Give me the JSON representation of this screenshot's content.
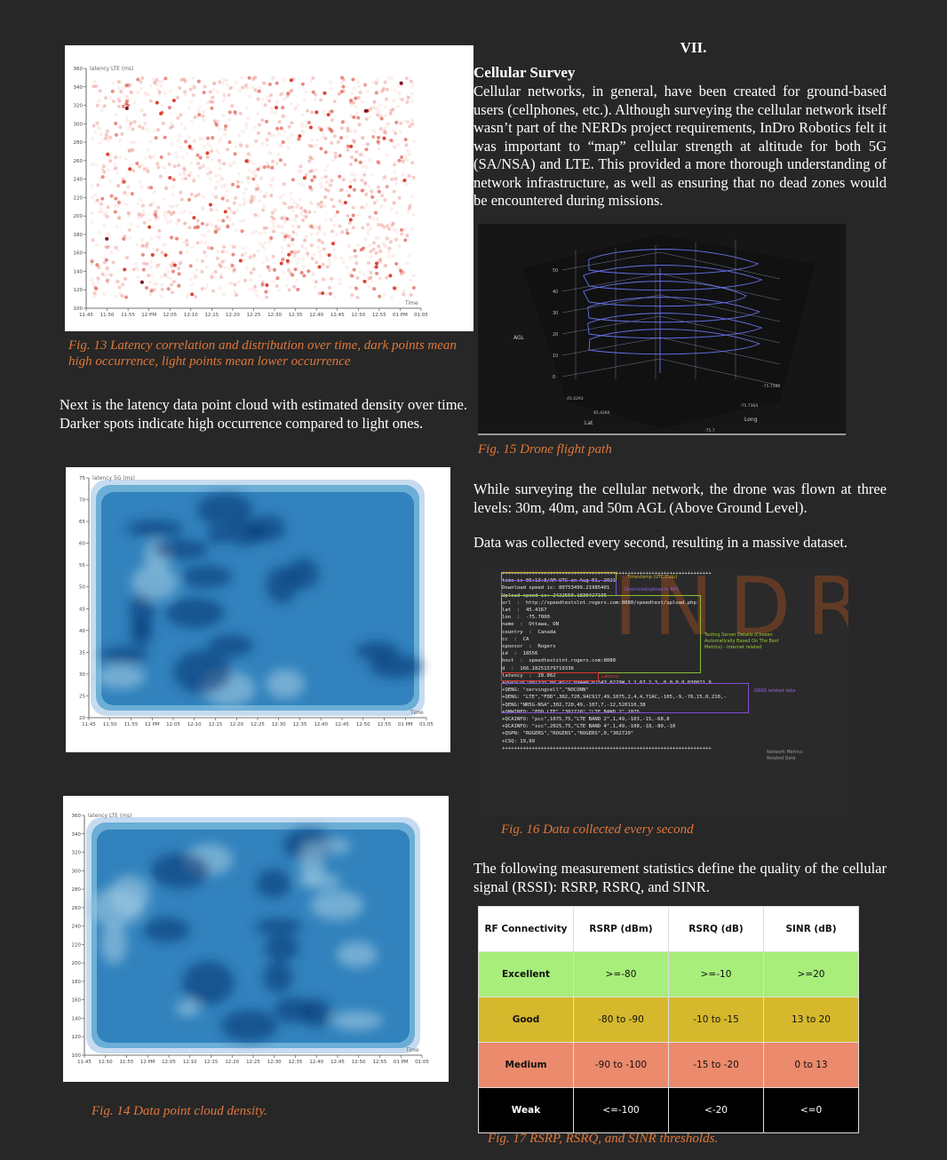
{
  "section_number": "VII.",
  "section_title": "Cellular Survey",
  "intro_paragraph": "Cellular networks, in general, have been created for ground-based users (cellphones, etc.). Although surveying the cellular network itself wasn’t part of the NERDs project requirements, InDro Robotics felt it was important to “map” cellular strength at altitude for both 5G (SA/NSA) and LTE. This provided a more thorough understanding of network infrastructure, as well as ensuring that no dead zones would be encountered during missions.",
  "time_ticks": [
    "11:45",
    "11:50",
    "11:55",
    "12 PM",
    "12:05",
    "12:10",
    "12:15",
    "12:20",
    "12:25",
    "12:30",
    "12:35",
    "12:40",
    "12:45",
    "12:50",
    "12:55",
    "01 PM",
    "01:05"
  ],
  "fig13": {
    "ylabel": "latency LTE (ms)",
    "xlabel": "Time",
    "yticks": [
      "100",
      "120",
      "140",
      "160",
      "180",
      "200",
      "220",
      "240",
      "260",
      "280",
      "300",
      "320",
      "340",
      "360"
    ],
    "ylim": [
      100,
      360
    ],
    "point_color": "#d7301f",
    "caption": "Fig. 13 Latency correlation and distribution over time, dark points mean high occurrence, light points mean lower occurrence"
  },
  "latency_paragraph": "Next is the latency data point cloud with estimated density over time. Darker spots indicate high occurrence compared to light ones.",
  "fig_5g": {
    "ylabel": "latency 5G (ms)",
    "xlabel": "Time",
    "yticks": [
      "20",
      "25",
      "30",
      "35",
      "40",
      "45",
      "50",
      "55",
      "60",
      "65",
      "70",
      "75"
    ],
    "ylim": [
      20,
      75
    ],
    "color": "#2171b5"
  },
  "fig14": {
    "ylabel": "latency LTE (ms)",
    "xlabel": "Time",
    "yticks": [
      "100",
      "120",
      "140",
      "160",
      "180",
      "200",
      "220",
      "240",
      "260",
      "280",
      "300",
      "320",
      "340",
      "360"
    ],
    "ylim": [
      100,
      360
    ],
    "color": "#2171b5",
    "caption": "Fig. 14 Data point cloud density."
  },
  "fig15": {
    "agl_label": "AGL",
    "lat_label": "Lat",
    "long_label": "Long",
    "agl_ticks": [
      "0",
      "10",
      "20",
      "30",
      "40",
      "50"
    ],
    "lat_ticks": [
      "45.4293",
      "45.4284"
    ],
    "long_ticks": [
      "-75.7366",
      "-75.7364",
      "-75.7"
    ],
    "caption": "Fig. 15 Drone flight path"
  },
  "flight_paragraph": "While surveying the cellular network, the drone was flown at three levels: 30m, 40m, and 50m AGL (Above Ground Level).",
  "data_paragraph": "Data was collected every second, resulting in a massive dataset.",
  "fig16": {
    "lines": [
      "++++++++++++++++++++++++++++++++++++++++++++++++++++++++++++++++++++++",
      "time is 06:13:8/AM UTC on Aug 01, 2021",
      "Download speed is: 80753499.21985401",
      "Upload speed is: 2422550.1830427195",
      "url  :  http://speedtestslnt.rogers.com:8080/speedtest/upload.php",
      "lat  :  45.4167",
      "lon  :  -75.7000",
      "name  :  Ottawa, ON",
      "country  :  Canada",
      "cc  :  CA",
      "sponsor  :  Rogers",
      "id  :  18556",
      "host  :  speedtestslnt.rogers.com:8080",
      "d  :  166.18251579719336",
      "latency  :  28.862",
      "",
      "+QGPSLOC:081335.00,4522.0944N,07543.0229W,1.2,67.2,3,,0.0,0.0,030821,9",
      "",
      "+QENG: \"servingcell\",\"NOCONN\"",
      "",
      "+QENG: \"LTE\",\"FDD\",302,720,94C917,49,1075,2,4,4,71AC,-105,-9,-76,15,0,210,-",
      "",
      "+QENG:\"NR5G-NSA\",302,720,49,-107,7,-12,520110,38",
      "",
      "+QNWINFO: \"FDD LTE\",\"302720\",\"LTE BAND 2\",1075",
      "",
      "+QCAINFO: \"pcc\",1075,75,\"LTE BAND 2\",1,49,-103,-15,-68,8",
      "",
      "+QCAINFO: \"scc\",2025,75,\"LTE BAND 4\",1,49,-108,-18,-80,-10",
      "",
      "+QSPN: \"ROGERS\",\"ROGERS\",\"ROGERS\",0,\"302720\"",
      "",
      "+CSQ: 19,99",
      "++++++++++++++++++++++++++++++++++++++++++++++++++++++++++++++++++++++"
    ],
    "annotations": {
      "timestamp": "Timestamp (UTC/Zulu)",
      "speed": "Download/upload in BPS",
      "server": "Testing Server Details (Chosen Automatically Based On The Best Metrics) - Internet related",
      "latency": "Latency",
      "gnss": "GNSS related data",
      "network": "Network Metrics Related Data"
    },
    "watermark": "INDRO",
    "caption": "Fig. 16 Data collected every second"
  },
  "rssi_paragraph": "The following measurement statistics define the quality of the cellular signal (RSSI): RSRP, RSRQ, and SINR.",
  "fig17": {
    "headers": [
      "RF Connectivity",
      "RSRP (dBm)",
      "RSRQ (dB)",
      "SINR (dB)"
    ],
    "rows": [
      {
        "label": "Excellent",
        "rsrp": ">=-80",
        "rsrq": ">=-10",
        "sinr": ">=20",
        "color": "#a7ee7b"
      },
      {
        "label": "Good",
        "rsrp": "-80 to -90",
        "rsrq": "-10 to -15",
        "sinr": "13 to 20",
        "color": "#d5b82b"
      },
      {
        "label": "Medium",
        "rsrp": "-90 to -100",
        "rsrq": "-15 to -20",
        "sinr": "0 to 13",
        "color": "#eb8a6c"
      },
      {
        "label": "Weak",
        "rsrp": "<=-100",
        "rsrq": "<-20",
        "sinr": "<=0",
        "color": "#000000"
      }
    ],
    "caption": "Fig. 17 RSRP, RSRQ, and SINR thresholds."
  }
}
